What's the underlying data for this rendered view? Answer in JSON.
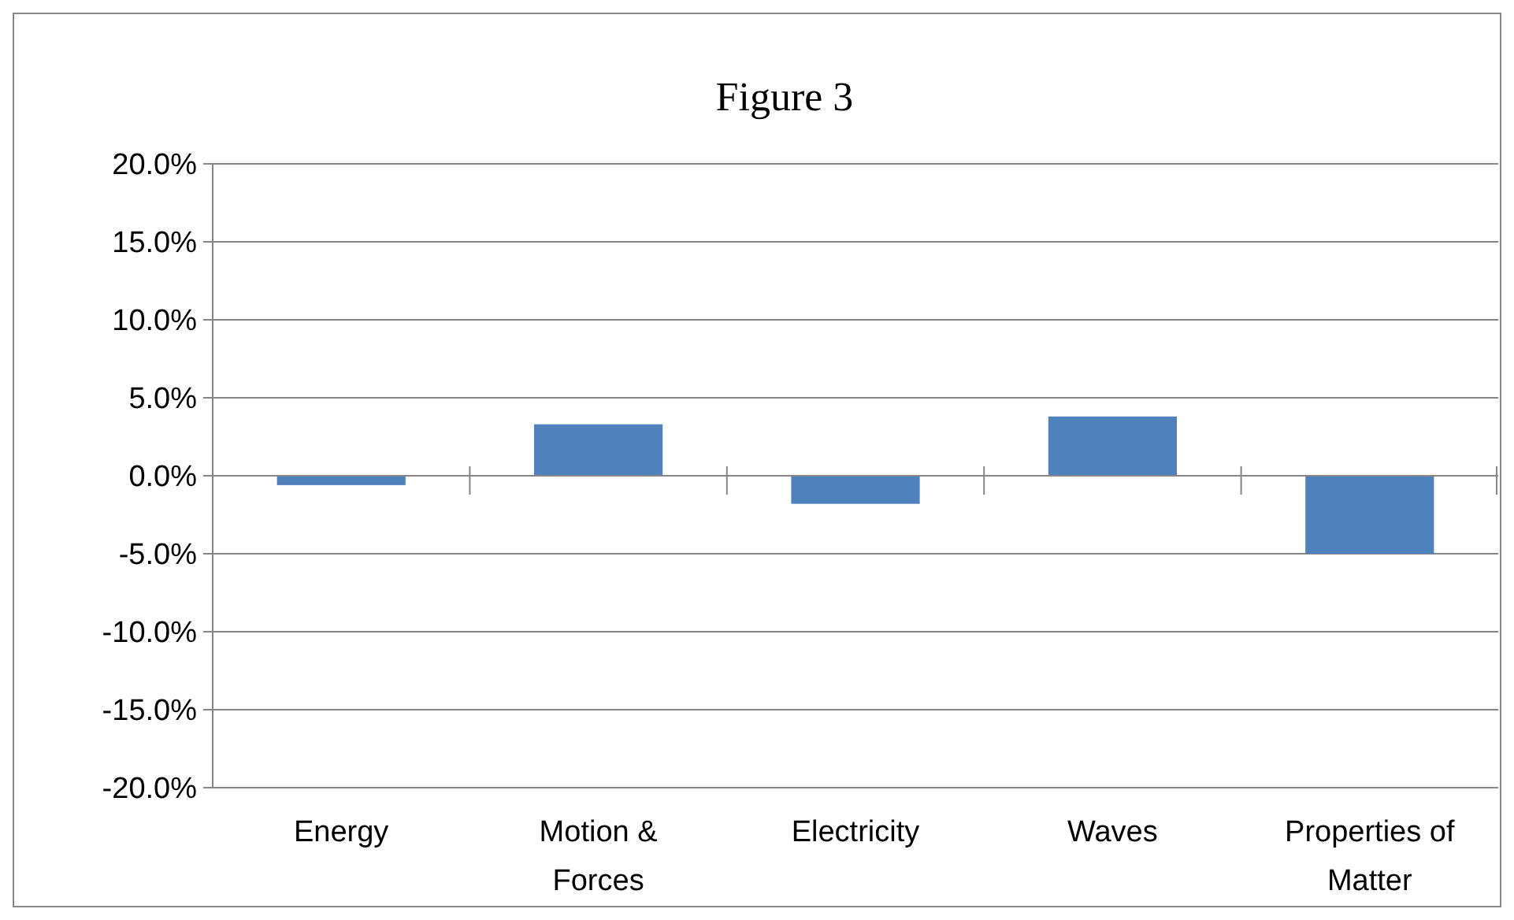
{
  "chart_data": {
    "type": "bar",
    "title": "Figure 3",
    "categories": [
      "Energy",
      "Motion & Forces",
      "Electricity",
      "Waves",
      "Properties of Matter"
    ],
    "values": [
      -0.6,
      3.3,
      -1.8,
      3.8,
      -5.0
    ],
    "color": "#4f81bd",
    "ylim": [
      -20,
      20
    ],
    "yticks": [
      {
        "value": -20,
        "label": "-20.0%"
      },
      {
        "value": -15,
        "label": "-15.0%"
      },
      {
        "value": -10,
        "label": "-10.0%"
      },
      {
        "value": -5,
        "label": "-5.0%"
      },
      {
        "value": 0,
        "label": "0.0%"
      },
      {
        "value": 5,
        "label": "5.0%"
      },
      {
        "value": 10,
        "label": "10.0%"
      },
      {
        "value": 15,
        "label": "15.0%"
      },
      {
        "value": 20,
        "label": "20.0%"
      }
    ],
    "grid": "y"
  }
}
